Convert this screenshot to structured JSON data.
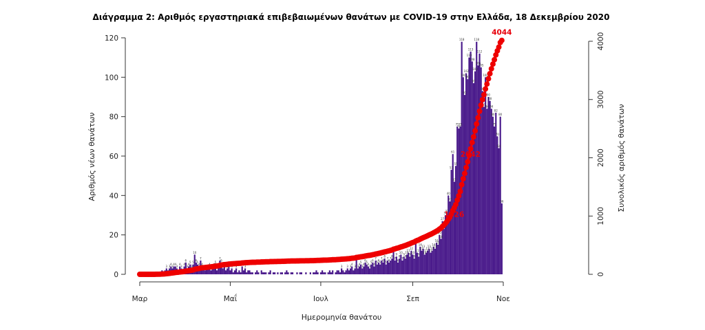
{
  "chart_data": {
    "type": "bar",
    "title": "Διάγραμμα 2: Αριθμός εργαστηριακά επιβεβαιωμένων θανάτων με COVID-19 στην Ελλάδα, 18 Δεκεμβρίου 2020",
    "xlabel": "Ημερομηνία θανάτου",
    "ylabel": "Αριθμός νέων θανάτων",
    "y2label": "Συνολικός αριθμός θανάτων",
    "x_start": "2020-03-01",
    "x_end": "2020-12-18",
    "x_ticks": [
      {
        "date": "2020-03-01",
        "label": "Μαρ"
      },
      {
        "date": "2020-05-01",
        "label": "Μαΐ"
      },
      {
        "date": "2020-07-01",
        "label": "Ιουλ"
      },
      {
        "date": "2020-09-01",
        "label": "Σεπ"
      },
      {
        "date": "2020-11-01",
        "label": "Νοε"
      }
    ],
    "ylim": [
      0,
      120
    ],
    "yticks": [
      0,
      20,
      40,
      60,
      80,
      100,
      120
    ],
    "y2lim": [
      0,
      4000
    ],
    "y2ticks": [
      0,
      1000,
      2000,
      3000,
      4000
    ],
    "series": [
      {
        "name": "Αριθμός νέων θανάτων",
        "color": "#4b1c8c",
        "values": [
          0,
          0,
          0,
          0,
          0,
          0,
          0,
          0,
          0,
          0,
          0,
          1,
          1,
          0,
          1,
          2,
          1,
          2,
          3,
          2,
          3,
          4,
          3,
          4,
          4,
          3,
          2,
          4,
          3,
          2,
          4,
          6,
          3,
          4,
          5,
          3,
          5,
          10,
          6,
          5,
          4,
          7,
          4,
          3,
          2,
          3,
          3,
          4,
          2,
          3,
          4,
          5,
          2,
          4,
          7,
          6,
          3,
          4,
          2,
          3,
          4,
          2,
          3,
          1,
          2,
          3,
          1,
          2,
          1,
          4,
          2,
          3,
          1,
          2,
          2,
          1,
          1,
          0,
          1,
          2,
          1,
          0,
          2,
          1,
          1,
          1,
          0,
          1,
          2,
          0,
          1,
          1,
          0,
          1,
          0,
          1,
          1,
          0,
          1,
          2,
          1,
          0,
          1,
          1,
          0,
          0,
          1,
          0,
          1,
          1,
          0,
          0,
          1,
          0,
          0,
          1,
          0,
          1,
          1,
          2,
          1,
          0,
          1,
          2,
          1,
          1,
          0,
          1,
          2,
          1,
          2,
          0,
          1,
          2,
          2,
          1,
          3,
          2,
          1,
          2,
          3,
          2,
          3,
          4,
          2,
          3,
          8,
          3,
          4,
          5,
          3,
          4,
          6,
          5,
          4,
          3,
          5,
          6,
          4,
          7,
          5,
          6,
          5,
          7,
          6,
          8,
          5,
          7,
          6,
          7,
          8,
          12,
          7,
          9,
          6,
          8,
          10,
          7,
          9,
          8,
          10,
          11,
          9,
          12,
          10,
          8,
          16,
          11,
          9,
          14,
          12,
          13,
          10,
          11,
          12,
          13,
          11,
          12,
          14,
          13,
          16,
          15,
          20,
          18,
          27,
          23,
          30,
          31,
          40,
          37,
          53,
          61,
          47,
          55,
          75,
          74,
          75,
          118,
          100,
          91,
          102,
          99,
          110,
          113,
          108,
          97,
          103,
          118,
          106,
          112,
          105,
          93,
          85,
          100,
          84,
          90,
          88,
          84,
          80,
          75,
          82,
          70,
          64,
          80,
          36
        ]
      },
      {
        "name": "Συνολικός αριθμός θανάτων",
        "color": "#ee0000",
        "type": "cumulative"
      }
    ],
    "annotations": [
      {
        "value": 1026,
        "label": "1026"
      },
      {
        "value": 2042,
        "label": "2042"
      },
      {
        "value": 4044,
        "label": "4044"
      }
    ],
    "grid": false,
    "legend": "none"
  }
}
